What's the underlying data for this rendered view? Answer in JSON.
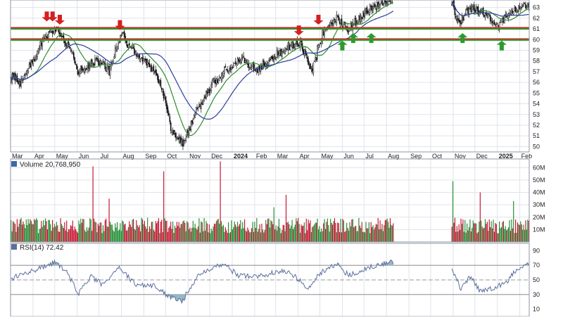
{
  "colors": {
    "background": "#ffffff",
    "grid": "#dfe3ea",
    "frame": "#8e96a6",
    "bull": "#1f8a2e",
    "bear": "#c3102d",
    "candle_wick": "#111111",
    "ma_fast": "#2e8b2e",
    "ma_slow": "#2f3d9c",
    "resistance": "#d32020",
    "support": "#2e9a2e",
    "rsi_line": "#5c6f9e",
    "rsi_fill": "#95b7c4",
    "text": "#222222"
  },
  "chart_data": [
    {
      "type": "candlestick",
      "panel": "price",
      "x_tick_labels": [
        "Mar",
        "Apr",
        "May",
        "Jun",
        "Jul",
        "Aug",
        "Sep",
        "Oct",
        "Nov",
        "Dec",
        "2024",
        "Feb",
        "Mar",
        "Apr",
        "May",
        "Jun",
        "Jul",
        "Aug",
        "Sep",
        "Oct",
        "Nov",
        "Dec",
        "2025",
        "Feb"
      ],
      "bold_x_ticks": [
        "2024",
        "2025"
      ],
      "y_tick_labels": [
        "50",
        "51",
        "52",
        "53",
        "54",
        "55",
        "56",
        "57",
        "58",
        "59",
        "60",
        "61",
        "62",
        "63"
      ],
      "ylim": [
        49.5,
        63.7
      ],
      "price_path": [
        [
          "2023-03-01",
          56.5
        ],
        [
          "2023-03-15",
          56.0
        ],
        [
          "2023-04-01",
          58.0
        ],
        [
          "2023-04-15",
          60.0
        ],
        [
          "2023-05-01",
          61.2
        ],
        [
          "2023-05-10",
          60.5
        ],
        [
          "2023-05-25",
          58.5
        ],
        [
          "2023-06-01",
          57.0
        ],
        [
          "2023-06-15",
          57.5
        ],
        [
          "2023-07-01",
          58.0
        ],
        [
          "2023-07-15",
          57.0
        ],
        [
          "2023-08-01",
          60.5
        ],
        [
          "2023-08-15",
          59.0
        ],
        [
          "2023-09-01",
          58.0
        ],
        [
          "2023-09-20",
          56.5
        ],
        [
          "2023-10-01",
          54.0
        ],
        [
          "2023-10-10",
          51.5
        ],
        [
          "2023-10-25",
          50.2
        ],
        [
          "2023-11-10",
          53.0
        ],
        [
          "2023-12-01",
          55.5
        ],
        [
          "2023-12-20",
          57.0
        ],
        [
          "2024-01-15",
          58.2
        ],
        [
          "2024-02-05",
          57.2
        ],
        [
          "2024-03-01",
          58.5
        ],
        [
          "2024-03-20",
          59.4
        ],
        [
          "2024-04-05",
          59.8
        ],
        [
          "2024-04-20",
          56.9
        ],
        [
          "2024-05-05",
          60.5
        ],
        [
          "2024-05-25",
          62.0
        ],
        [
          "2024-06-10",
          61.0
        ],
        [
          "2024-07-01",
          62.5
        ],
        [
          "2024-07-20",
          63.2
        ],
        [
          "2024-08-05",
          63.8
        ],
        [
          "2024-11-01",
          63.5
        ],
        [
          "2024-11-10",
          61.3
        ],
        [
          "2024-11-25",
          63.0
        ],
        [
          "2024-12-15",
          62.5
        ],
        [
          "2025-01-05",
          61.2
        ],
        [
          "2025-01-20",
          62.6
        ],
        [
          "2025-02-10",
          63.2
        ]
      ],
      "moving_averages": [
        {
          "color": "#2e8b2e",
          "smoothing_days": 20
        },
        {
          "color": "#2f3d9c",
          "smoothing_days": 45
        }
      ],
      "horizontal_lines": [
        {
          "value": 61.1,
          "kind": "resistance",
          "color": "#d32020"
        },
        {
          "value": 60.05,
          "kind": "resistance",
          "color": "#d32020"
        },
        {
          "value": 61.0,
          "kind": "support",
          "color": "#2e9a2e"
        },
        {
          "value": 59.95,
          "kind": "support",
          "color": "#2e9a2e"
        }
      ],
      "down_arrows": [
        {
          "date": "2023-04-20",
          "price": 61.7
        },
        {
          "date": "2023-04-28",
          "price": 61.7
        },
        {
          "date": "2023-05-08",
          "price": 61.4
        },
        {
          "date": "2023-07-30",
          "price": 60.9
        },
        {
          "date": "2024-04-02",
          "price": 60.4
        },
        {
          "date": "2024-04-29",
          "price": 61.4
        }
      ],
      "up_arrows": [
        {
          "date": "2024-06-01",
          "price": 59.9
        },
        {
          "date": "2024-06-16",
          "price": 60.6
        },
        {
          "date": "2024-07-11",
          "price": 60.6
        },
        {
          "date": "2024-11-14",
          "price": 60.6
        },
        {
          "date": "2025-01-07",
          "price": 59.9
        }
      ],
      "date_range": [
        "2023-03-01",
        "2025-02-14"
      ],
      "gap_range": [
        "2024-08-12",
        "2024-10-31"
      ]
    },
    {
      "type": "bar",
      "panel": "volume",
      "label": "Volume 20,768,950",
      "y_tick_labels": [
        "10M",
        "20M",
        "30M",
        "40M",
        "50M",
        "60M"
      ],
      "ylim": [
        0,
        67
      ],
      "base_volume_m": 14,
      "spikes": [
        {
          "date": "2023-06-22",
          "value_m": 61
        },
        {
          "date": "2023-07-14",
          "value_m": 35
        },
        {
          "date": "2023-09-28",
          "value_m": 57
        },
        {
          "date": "2023-12-15",
          "value_m": 65
        },
        {
          "date": "2024-02-28",
          "value_m": 28
        },
        {
          "date": "2024-03-15",
          "value_m": 38
        },
        {
          "date": "2024-11-01",
          "value_m": 49
        },
        {
          "date": "2024-12-10",
          "value_m": 40
        },
        {
          "date": "2025-01-24",
          "value_m": 33
        }
      ]
    },
    {
      "type": "line",
      "panel": "rsi",
      "label": "RSI(14) 72.42",
      "series": [
        {
          "name": "RSI(14)",
          "last": 72.42
        }
      ],
      "y_tick_labels": [
        "10",
        "30",
        "50",
        "70",
        "90"
      ],
      "ylim": [
        0,
        100
      ],
      "reference_lines": [
        70,
        50,
        30
      ],
      "rsi_path": [
        [
          "2023-03-01",
          52
        ],
        [
          "2023-04-10",
          66
        ],
        [
          "2023-05-01",
          74
        ],
        [
          "2023-05-20",
          58
        ],
        [
          "2023-06-01",
          31
        ],
        [
          "2023-06-20",
          55
        ],
        [
          "2023-07-05",
          43
        ],
        [
          "2023-07-28",
          68
        ],
        [
          "2023-08-20",
          44
        ],
        [
          "2023-09-15",
          42
        ],
        [
          "2023-10-05",
          28
        ],
        [
          "2023-10-24",
          22
        ],
        [
          "2023-11-15",
          55
        ],
        [
          "2023-12-01",
          66
        ],
        [
          "2023-12-20",
          72
        ],
        [
          "2024-01-10",
          56
        ],
        [
          "2024-02-05",
          55
        ],
        [
          "2024-03-01",
          60
        ],
        [
          "2024-03-20",
          62
        ],
        [
          "2024-04-15",
          38
        ],
        [
          "2024-05-05",
          62
        ],
        [
          "2024-05-25",
          72
        ],
        [
          "2024-06-10",
          56
        ],
        [
          "2024-07-05",
          66
        ],
        [
          "2024-07-25",
          72
        ],
        [
          "2024-08-08",
          74
        ],
        [
          "2024-11-01",
          65
        ],
        [
          "2024-11-12",
          38
        ],
        [
          "2024-11-25",
          54
        ],
        [
          "2024-12-10",
          34
        ],
        [
          "2024-12-30",
          40
        ],
        [
          "2025-01-12",
          44
        ],
        [
          "2025-01-25",
          60
        ],
        [
          "2025-02-14",
          72.4
        ]
      ]
    }
  ]
}
